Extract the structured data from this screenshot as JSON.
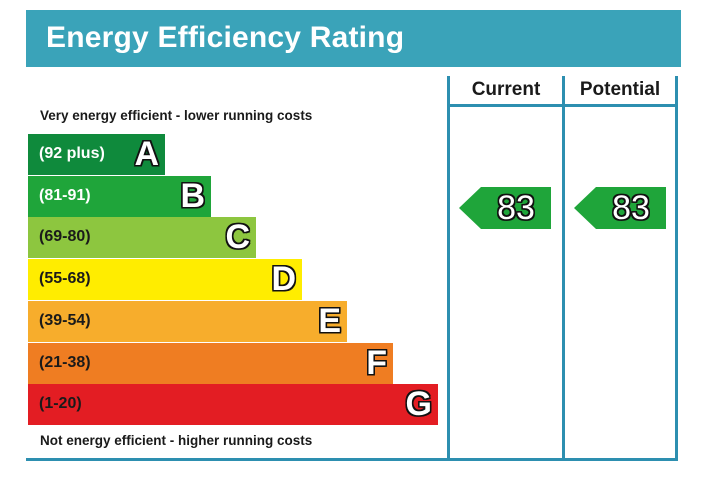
{
  "header": {
    "title": "Energy Efficiency Rating"
  },
  "captions": {
    "top": "Very energy efficient - lower running costs",
    "bottom": "Not energy efficient - higher running costs"
  },
  "columns": {
    "current_label": "Current",
    "potential_label": "Potential"
  },
  "bands": [
    {
      "range": "(92 plus)",
      "letter": "A",
      "color": "#0f8a3c",
      "text_color": "#ffffff"
    },
    {
      "range": "(81-91)",
      "letter": "B",
      "color": "#1fa53a",
      "text_color": "#ffffff"
    },
    {
      "range": "(69-80)",
      "letter": "C",
      "color": "#8dc63f",
      "text_color": "#1a1a1a"
    },
    {
      "range": "(55-68)",
      "letter": "D",
      "color": "#ffed00",
      "text_color": "#1a1a1a"
    },
    {
      "range": "(39-54)",
      "letter": "E",
      "color": "#f7ad2c",
      "text_color": "#1a1a1a"
    },
    {
      "range": "(21-38)",
      "letter": "F",
      "color": "#ef7d22",
      "text_color": "#1a1a1a"
    },
    {
      "range": "(1-20)",
      "letter": "G",
      "color": "#e31d23",
      "text_color": "#1a1a1a"
    }
  ],
  "ratings": {
    "current": {
      "value": "83",
      "color": "#1fa53a"
    },
    "potential": {
      "value": "83",
      "color": "#1fa53a"
    }
  },
  "border_color": "#2d8fb0",
  "header_color": "#3aa3b9"
}
